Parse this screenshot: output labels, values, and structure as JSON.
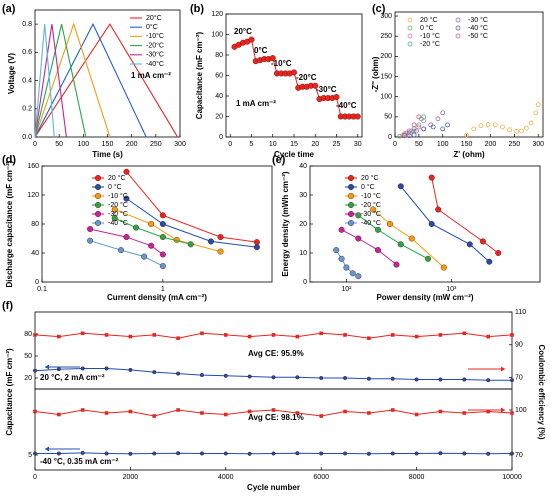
{
  "chart_data": [
    {
      "panel": "(a)",
      "type": "line",
      "xlabel": "Time (s)",
      "ylabel": "Voltage (V)",
      "xlim": [
        0,
        300
      ],
      "xticks": [
        0,
        50,
        100,
        150,
        200,
        250,
        300
      ],
      "ylim": [
        0,
        0.9
      ],
      "yticks": [
        {
          "value": 0,
          "label": "0.0"
        },
        0.2,
        0.4,
        0.6,
        0.8
      ],
      "marker": "none",
      "legend": "upper right",
      "annotations": [
        {
          "text": "1 mA cm⁻²",
          "color": "#000000"
        }
      ],
      "series": [
        {
          "name": "20°C",
          "color": "#e8251f",
          "x": [
            0,
            155,
            295
          ],
          "values": [
            0,
            0.8,
            0
          ]
        },
        {
          "name": "0°C",
          "color": "#1f5fd6",
          "x": [
            0,
            120,
            230
          ],
          "values": [
            0,
            0.8,
            0
          ]
        },
        {
          "name": "-10°C",
          "color": "#f39c12",
          "x": [
            0,
            80,
            155
          ],
          "values": [
            0,
            0.8,
            0
          ]
        },
        {
          "name": "-20°C",
          "color": "#27a844",
          "x": [
            0,
            55,
            105
          ],
          "values": [
            0,
            0.8,
            0
          ]
        },
        {
          "name": "-30°C",
          "color": "#c2249a",
          "x": [
            0,
            35,
            65
          ],
          "values": [
            0,
            0.8,
            0
          ]
        },
        {
          "name": "-40°C",
          "color": "#5bb4e5",
          "x": [
            0,
            20,
            40
          ],
          "values": [
            0,
            0.8,
            0
          ]
        }
      ]
    },
    {
      "panel": "(b)",
      "type": "line",
      "xlabel": "Cycle time",
      "ylabel": "Capacitance (mF cm⁻²)",
      "xlim": [
        -1,
        31
      ],
      "xticks": [
        0,
        5,
        10,
        15,
        20,
        25,
        30
      ],
      "ylim": [
        0,
        120
      ],
      "yticks": [
        0,
        20,
        40,
        60,
        80,
        100,
        120
      ],
      "marker": "circle",
      "annotations": [
        {
          "text": "20°C",
          "color": "#000000"
        },
        {
          "text": "0°C",
          "color": "#000000"
        },
        {
          "text": "-10°C",
          "color": "#000000"
        },
        {
          "text": "-20°C",
          "color": "#000000"
        },
        {
          "text": "-30°C",
          "color": "#000000"
        },
        {
          "text": "-40°C",
          "color": "#000000"
        },
        {
          "text": "1 mA cm⁻²",
          "color": "#000000"
        }
      ],
      "series": [
        {
          "color": "#e8251f",
          "x": [
            1,
            2,
            3,
            4,
            5,
            6,
            7,
            8,
            9,
            10,
            11,
            12,
            13,
            14,
            15,
            16,
            17,
            18,
            19,
            20,
            21,
            22,
            23,
            24,
            25,
            26,
            27,
            28,
            29,
            30
          ],
          "values": [
            88,
            90,
            92,
            93,
            95,
            74,
            75,
            76,
            76,
            77,
            62,
            62,
            62,
            62,
            63,
            48,
            49,
            49,
            50,
            50,
            37,
            38,
            38,
            38,
            39,
            20,
            20,
            20,
            20,
            20
          ]
        }
      ]
    },
    {
      "panel": "(c)",
      "type": "scatter",
      "xlabel": "Z' (ohm)",
      "ylabel": "-Z'' (ohm)",
      "xlim": [
        0,
        310
      ],
      "xticks": [
        0,
        50,
        100,
        150,
        200,
        250,
        300
      ],
      "ylim": [
        0,
        310
      ],
      "yticks": [
        0,
        50,
        100,
        150,
        200,
        250,
        300
      ],
      "marker": "circle-open",
      "legend": "upper center",
      "series": [
        {
          "name": "20 °C",
          "color": "#f0a830",
          "x": [
            150,
            165,
            180,
            195,
            210,
            225,
            240,
            255,
            265,
            275,
            285,
            295,
            300
          ],
          "values": [
            5,
            20,
            28,
            31,
            30,
            25,
            18,
            14,
            15,
            22,
            35,
            60,
            80
          ]
        },
        {
          "name": "0 °C",
          "color": "#4caf50",
          "x": [
            10,
            20,
            30,
            40,
            50,
            60
          ],
          "values": [
            2,
            8,
            10,
            15,
            30,
            50
          ]
        },
        {
          "name": "-10 °C",
          "color": "#e060b0",
          "x": [
            15,
            25,
            35,
            50,
            60
          ],
          "values": [
            3,
            10,
            15,
            25,
            40
          ]
        },
        {
          "name": "-20 °C",
          "color": "#3a9a9a",
          "x": [
            20,
            30,
            40,
            55
          ],
          "values": [
            3,
            10,
            20,
            45
          ]
        },
        {
          "name": "-30 °C",
          "color": "#9050c0",
          "x": [
            30,
            45,
            60,
            75,
            90,
            100
          ],
          "values": [
            3,
            15,
            20,
            30,
            45,
            60
          ]
        },
        {
          "name": "-40 °C",
          "color": "#3050a0",
          "x": [
            40,
            60,
            80,
            100,
            110
          ],
          "values": [
            5,
            20,
            25,
            20,
            30
          ]
        },
        {
          "name": "-50 °C",
          "color": "#d04080",
          "x": [
            20,
            30,
            40,
            50
          ],
          "values": [
            5,
            15,
            30,
            50
          ]
        }
      ]
    },
    {
      "panel": "(d)",
      "type": "line",
      "xlabel": "Current density (mA cm⁻²)",
      "ylabel": "Discharge capacitance (mF cm⁻²)",
      "xlog": true,
      "xlim": [
        0.1,
        8
      ],
      "xticks": [
        0.1,
        1
      ],
      "ylim": [
        0,
        160
      ],
      "yticks": [
        0,
        40,
        80,
        120,
        160
      ],
      "marker": "circle",
      "legend": "upper left",
      "series": [
        {
          "name": "20 °C",
          "color": "#e8251f",
          "x": [
            0.5,
            1,
            3,
            6
          ],
          "values": [
            152,
            92,
            62,
            55
          ]
        },
        {
          "name": "0 °C",
          "color": "#1f4fa8",
          "x": [
            0.5,
            1,
            2.5,
            6
          ],
          "values": [
            115,
            80,
            56,
            48
          ]
        },
        {
          "name": "-10 °C",
          "color": "#f39c12",
          "x": [
            0.4,
            0.8,
            1.3,
            3
          ],
          "values": [
            100,
            80,
            58,
            42
          ]
        },
        {
          "name": "-20 °C",
          "color": "#27a844",
          "x": [
            0.4,
            0.6,
            1,
            1.7
          ],
          "values": [
            88,
            75,
            62,
            52
          ]
        },
        {
          "name": "-30 °C",
          "color": "#c2249a",
          "x": [
            0.25,
            0.5,
            0.8,
            1
          ],
          "values": [
            73,
            62,
            50,
            38
          ]
        },
        {
          "name": "-40 °C",
          "color": "#5b9bd5",
          "x": [
            0.25,
            0.45,
            0.7,
            1
          ],
          "values": [
            57,
            44,
            35,
            22
          ]
        }
      ]
    },
    {
      "panel": "(e)",
      "type": "line",
      "xlabel": "Power density (mW cm⁻²)",
      "ylabel": "Energy density (mWh cm⁻²)",
      "xlog": true,
      "xlim": [
        45,
        7000
      ],
      "xticks": [
        {
          "value": 100,
          "label": "10²"
        },
        {
          "value": 1000,
          "label": "10³"
        }
      ],
      "ylim": [
        0,
        40
      ],
      "yticks": [
        0,
        10,
        20,
        30,
        40
      ],
      "marker": "circle",
      "legend": "upper left",
      "series": [
        {
          "name": "20 °C",
          "color": "#e8251f",
          "x": [
            650,
            750,
            2000,
            2800
          ],
          "values": [
            36,
            25,
            14,
            10
          ]
        },
        {
          "name": "0 °C",
          "color": "#1f4fa8",
          "x": [
            330,
            650,
            1500,
            2300
          ],
          "values": [
            33,
            20,
            13,
            7
          ]
        },
        {
          "name": "-10 °C",
          "color": "#f39c12",
          "x": [
            180,
            260,
            420,
            850
          ],
          "values": [
            25,
            20,
            15,
            5
          ]
        },
        {
          "name": "-20 °C",
          "color": "#27a844",
          "x": [
            130,
            200,
            330,
            600
          ],
          "values": [
            23,
            18,
            13,
            8
          ]
        },
        {
          "name": "-30 °C",
          "color": "#c2249a",
          "x": [
            90,
            130,
            200,
            300
          ],
          "values": [
            18,
            15,
            11,
            6
          ]
        },
        {
          "name": "-40 °C",
          "color": "#5b9bd5",
          "x": [
            80,
            90,
            100,
            115,
            130
          ],
          "values": [
            11,
            8,
            5,
            3,
            2
          ]
        }
      ]
    },
    {
      "panel": "(f)",
      "type": "line",
      "ylabel": "Capacitance (mF cm⁻²)",
      "y2label": "Coulombic efficiency (%)",
      "xlim": [
        0,
        10000
      ],
      "ylim": [
        5,
        110
      ],
      "yticks": [
        20,
        50,
        80
      ],
      "y2lim": [
        63,
        110
      ],
      "y2ticks": [
        70,
        90,
        110
      ],
      "annotations": [
        {
          "text": "Avg CE: 95.9%",
          "color": "#e8251f"
        },
        {
          "text": "20 °C, 2 mA cm⁻²",
          "color": "#000000"
        }
      ],
      "series": [
        {
          "color": "#1f4fa8",
          "marker": "circle",
          "x": [
            0,
            500,
            1000,
            1500,
            2000,
            2500,
            3000,
            3500,
            4000,
            4500,
            5000,
            5500,
            6000,
            6500,
            7000,
            7500,
            8000,
            8500,
            9000,
            9500,
            10000
          ],
          "values": [
            30,
            32,
            33,
            33,
            31,
            28,
            26,
            24,
            23,
            22,
            21,
            21,
            20,
            20,
            19,
            19,
            18,
            18,
            18,
            17,
            17
          ]
        },
        {
          "color": "#e8251f",
          "marker": "square",
          "axis": "y2",
          "x": [
            0,
            500,
            1000,
            1500,
            2000,
            2500,
            3000,
            3500,
            4000,
            4500,
            5000,
            5500,
            6000,
            6500,
            7000,
            7500,
            8000,
            8500,
            9000,
            9500,
            10000
          ],
          "values": [
            96,
            95,
            97,
            96,
            95,
            96,
            94,
            97,
            96,
            95,
            96,
            95,
            97,
            96,
            94,
            96,
            95,
            96,
            97,
            95,
            96
          ]
        }
      ]
    },
    {
      "type": "line",
      "xlabel": "Cycle number",
      "xlim": [
        0,
        10000
      ],
      "xticks": [
        0,
        2000,
        4000,
        6000,
        8000,
        10000
      ],
      "ylim": [
        0,
        27
      ],
      "yticks": [
        5
      ],
      "y2lim": [
        60,
        114
      ],
      "y2ticks": [
        70,
        100
      ],
      "annotations": [
        {
          "text": "Avg CE: 98.1%",
          "color": "#e8251f"
        },
        {
          "text": "-40 °C, 0.35 mA cm⁻²",
          "color": "#000000"
        }
      ],
      "series": [
        {
          "color": "#1f4fa8",
          "marker": "circle",
          "x": [
            0,
            500,
            1000,
            1500,
            2000,
            2500,
            3000,
            3500,
            4000,
            4500,
            5000,
            5500,
            6000,
            6500,
            7000,
            7500,
            8000,
            8500,
            9000,
            9500,
            10000
          ],
          "values": [
            5.5,
            5.5,
            5.7,
            5.5,
            5.4,
            5.5,
            5.6,
            5.5,
            5.5,
            5.4,
            5.5,
            5.6,
            5.5,
            5.5,
            5.4,
            5.5,
            5.5,
            5.6,
            5.5,
            5.4,
            5.5
          ]
        },
        {
          "color": "#e8251f",
          "marker": "square",
          "axis": "y2",
          "x": [
            0,
            500,
            1000,
            1500,
            2000,
            2500,
            3000,
            3500,
            4000,
            4500,
            5000,
            5500,
            6000,
            6500,
            7000,
            7500,
            8000,
            8500,
            9000,
            9500,
            10000
          ],
          "values": [
            99,
            97,
            100,
            98,
            99,
            96,
            100,
            98,
            97,
            99,
            100,
            98,
            96,
            99,
            98,
            100,
            97,
            99,
            98,
            99,
            98
          ]
        }
      ]
    }
  ]
}
